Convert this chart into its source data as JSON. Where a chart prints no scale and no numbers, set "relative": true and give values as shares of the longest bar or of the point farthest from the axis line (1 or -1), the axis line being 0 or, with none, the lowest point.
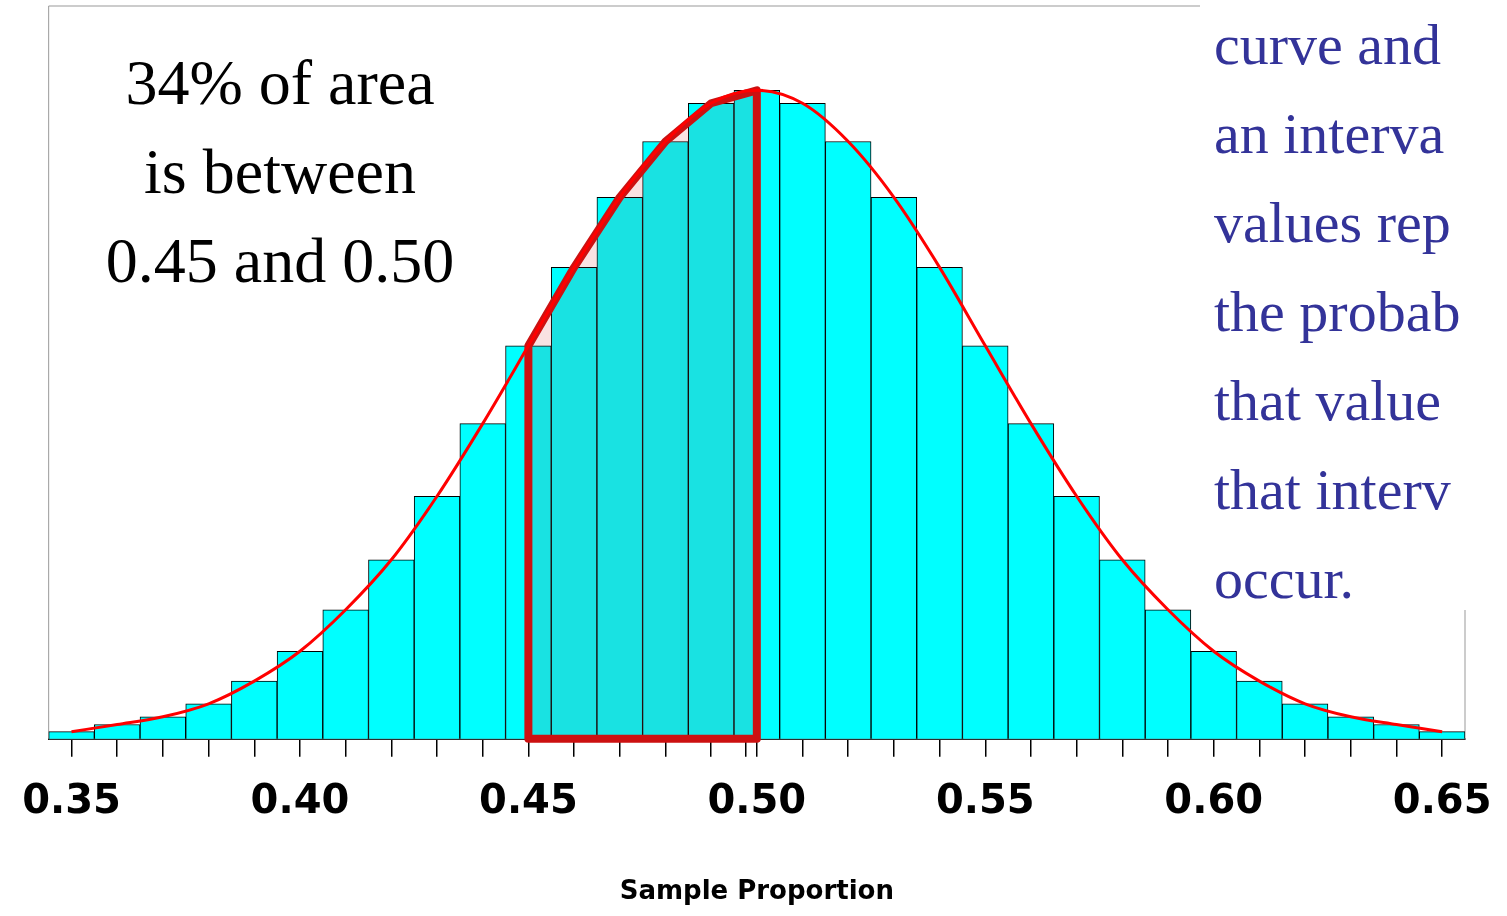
{
  "chart_data": {
    "type": "histogram",
    "xlabel": "Sample Proportion",
    "relative": true,
    "bins": [
      0.345,
      0.355,
      0.365,
      0.375,
      0.385,
      0.395,
      0.405,
      0.415,
      0.425,
      0.435,
      0.445,
      0.455,
      0.465,
      0.475,
      0.485,
      0.495,
      0.505,
      0.515,
      0.525,
      0.535,
      0.545,
      0.555,
      0.565,
      0.575,
      0.585,
      0.595,
      0.605,
      0.615,
      0.625,
      0.635,
      0.645,
      0.655
    ],
    "series": [
      {
        "type": "histogram",
        "color": "#00ffff",
        "values": [
          0.011,
          0.022,
          0.034,
          0.054,
          0.089,
          0.135,
          0.199,
          0.276,
          0.374,
          0.486,
          0.606,
          0.727,
          0.835,
          0.921,
          0.98,
          1,
          0.98,
          0.921,
          0.835,
          0.727,
          0.606,
          0.486,
          0.374,
          0.276,
          0.199,
          0.135,
          0.089,
          0.054,
          0.034,
          0.022,
          0.011
        ]
      },
      {
        "type": "line",
        "color": "#ff0000",
        "x": [
          0.35,
          0.36,
          0.37,
          0.38,
          0.39,
          0.4,
          0.41,
          0.42,
          0.43,
          0.44,
          0.45,
          0.46,
          0.47,
          0.48,
          0.49,
          0.5,
          0.51,
          0.52,
          0.53,
          0.54,
          0.55,
          0.56,
          0.57,
          0.58,
          0.59,
          0.6,
          0.61,
          0.62,
          0.63,
          0.64,
          0.65
        ],
        "values": [
          0.011,
          0.022,
          0.034,
          0.054,
          0.089,
          0.135,
          0.199,
          0.276,
          0.374,
          0.486,
          0.606,
          0.727,
          0.835,
          0.921,
          0.98,
          1,
          0.98,
          0.921,
          0.835,
          0.727,
          0.606,
          0.486,
          0.374,
          0.276,
          0.199,
          0.135,
          0.089,
          0.054,
          0.034,
          0.022,
          0.011
        ]
      }
    ],
    "xlim": [
      0.345,
      0.655
    ],
    "xticks": [
      0.35,
      {
        "value": 0.4,
        "label": "0.40"
      },
      0.45,
      {
        "value": 0.5,
        "label": "0.50"
      },
      0.55,
      {
        "value": 0.6,
        "label": "0.60"
      },
      0.65
    ],
    "bands": [
      {
        "axis": "x",
        "from": 0.45,
        "to": 0.5,
        "color": "#cc1111"
      }
    ],
    "annotations": [
      "34% of area\nis between\n0.45 and 0.50",
      "curve and\nan interva\nvalues rep\nthe probab\nthat value\nthat interv\noccur."
    ]
  }
}
